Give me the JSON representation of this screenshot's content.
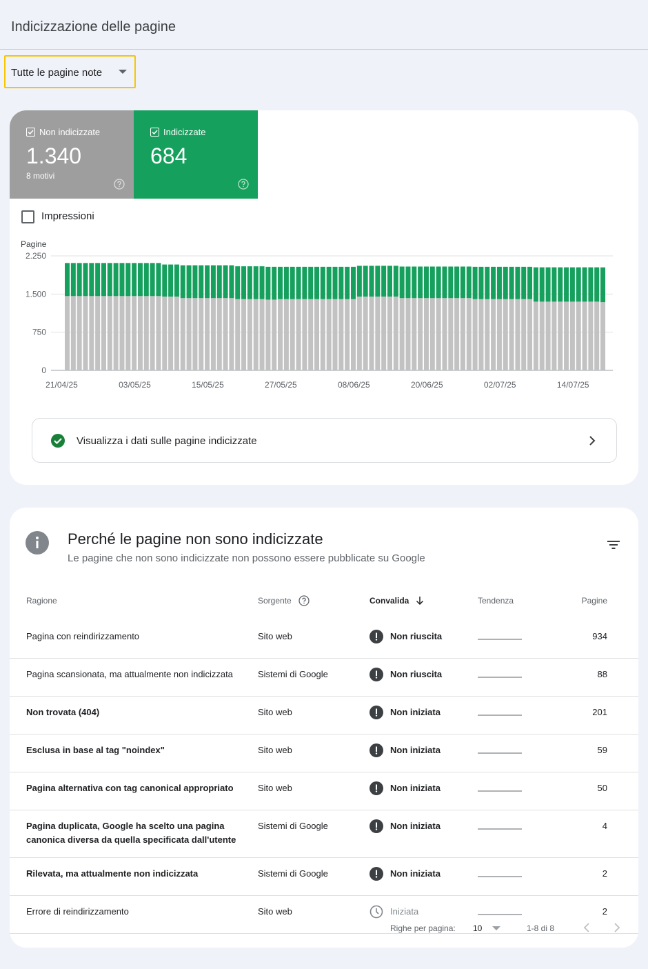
{
  "header": {
    "title": "Indicizzazione delle pagine"
  },
  "filter": {
    "label": "Tutte le pagine note"
  },
  "summary": [
    {
      "value": "1.340",
      "note": "8 motivi"
    },
    {
      "value": "684"
    }
  ],
  "impressions_label": "Impressioni",
  "chart_data": {
    "type": "bar",
    "stacked": true,
    "ylabel": "Pagine",
    "categories": [
      "21/04/25",
      null,
      null,
      null,
      null,
      null,
      null,
      null,
      null,
      null,
      null,
      null,
      "03/05/25",
      null,
      null,
      null,
      null,
      null,
      null,
      null,
      null,
      null,
      null,
      null,
      "15/05/25",
      null,
      null,
      null,
      null,
      null,
      null,
      null,
      null,
      null,
      null,
      null,
      "27/05/25",
      null,
      null,
      null,
      null,
      null,
      null,
      null,
      null,
      null,
      null,
      null,
      "08/06/25",
      null,
      null,
      null,
      null,
      null,
      null,
      null,
      null,
      null,
      null,
      null,
      "20/06/25",
      null,
      null,
      null,
      null,
      null,
      null,
      null,
      null,
      null,
      null,
      null,
      "02/07/25",
      null,
      null,
      null,
      null,
      null,
      null,
      null,
      null,
      null,
      null,
      null,
      "14/07/25",
      null,
      null,
      null,
      null
    ],
    "series": [
      {
        "name": "Non indicizzate",
        "color": "#c2c2c2",
        "values": [
          1460,
          1460,
          1460,
          1460,
          1460,
          1460,
          1460,
          1460,
          1460,
          1460,
          1460,
          1460,
          1460,
          1460,
          1460,
          1460,
          1450,
          1450,
          1450,
          1420,
          1420,
          1420,
          1420,
          1420,
          1420,
          1420,
          1420,
          1420,
          1400,
          1400,
          1400,
          1400,
          1400,
          1390,
          1390,
          1400,
          1400,
          1400,
          1400,
          1400,
          1400,
          1400,
          1400,
          1400,
          1400,
          1400,
          1400,
          1400,
          1450,
          1450,
          1450,
          1450,
          1450,
          1450,
          1450,
          1420,
          1420,
          1420,
          1420,
          1420,
          1420,
          1420,
          1420,
          1420,
          1420,
          1420,
          1420,
          1400,
          1400,
          1400,
          1400,
          1400,
          1400,
          1400,
          1400,
          1400,
          1400,
          1350,
          1350,
          1350,
          1350,
          1350,
          1350,
          1350,
          1350,
          1350,
          1350,
          1350,
          1340
        ]
      },
      {
        "name": "Indicizzate",
        "color": "#16a05d",
        "values": [
          650,
          650,
          650,
          650,
          650,
          650,
          650,
          650,
          650,
          650,
          650,
          650,
          650,
          650,
          650,
          650,
          630,
          630,
          630,
          645,
          645,
          645,
          645,
          645,
          645,
          645,
          645,
          645,
          645,
          645,
          645,
          645,
          645,
          645,
          645,
          635,
          635,
          635,
          635,
          635,
          635,
          635,
          635,
          635,
          635,
          635,
          635,
          635,
          605,
          605,
          605,
          605,
          605,
          605,
          605,
          620,
          620,
          620,
          620,
          620,
          620,
          620,
          620,
          620,
          620,
          620,
          620,
          635,
          635,
          635,
          635,
          635,
          635,
          635,
          635,
          635,
          635,
          675,
          675,
          675,
          675,
          675,
          675,
          675,
          675,
          675,
          675,
          675,
          684
        ]
      }
    ],
    "ylim": [
      0,
      2250
    ],
    "yticks": [
      0,
      750,
      {
        "value": 1500,
        "label": "1.500"
      },
      {
        "value": 2250,
        "label": "2.250"
      }
    ],
    "grid": true
  },
  "link": {
    "label": "Visualizza i dati sulle pagine indicizzate"
  },
  "reasons": {
    "title": "Perché le pagine non sono indicizzate",
    "subtitle": "Le pagine che non sono indicizzate non possono essere pubblicate su Google",
    "columns": [
      "Ragione",
      "Sorgente",
      "Convalida",
      "Tendenza",
      "Pagine"
    ],
    "rows": [
      {
        "reason": "Pagina con reindirizzamento",
        "source": "Sito web",
        "validation": "Non riuscita",
        "pages": 934,
        "bold": false,
        "icon": "alert"
      },
      {
        "reason": "Pagina scansionata, ma attualmente non indicizzata",
        "source": "Sistemi di Google",
        "validation": "Non riuscita",
        "pages": 88,
        "bold": false,
        "icon": "alert"
      },
      {
        "reason": "Non trovata (404)",
        "source": "Sito web",
        "validation": "Non iniziata",
        "pages": 201,
        "bold": true,
        "icon": "alert"
      },
      {
        "reason": "Esclusa in base al tag \"noindex\"",
        "source": "Sito web",
        "validation": "Non iniziata",
        "pages": 59,
        "bold": true,
        "icon": "alert"
      },
      {
        "reason": "Pagina alternativa con tag canonical appropriato",
        "source": "Sito web",
        "validation": "Non iniziata",
        "pages": 50,
        "bold": true,
        "icon": "alert"
      },
      {
        "reason": "Pagina duplicata, Google ha scelto una pagina canonica diversa da quella specificata dall'utente",
        "source": "Sistemi di Google",
        "validation": "Non iniziata",
        "pages": 4,
        "bold": true,
        "icon": "alert"
      },
      {
        "reason": "Rilevata, ma attualmente non indicizzata",
        "source": "Sistemi di Google",
        "validation": "Non iniziata",
        "pages": 2,
        "bold": true,
        "icon": "alert"
      },
      {
        "reason": "Errore di reindirizzamento",
        "source": "Sito web",
        "validation": "Iniziata",
        "pages": 2,
        "bold": false,
        "icon": "clock"
      }
    ]
  },
  "pagination": {
    "rows_label": "Righe per pagina:",
    "rows_per_page": 10,
    "range": "1-8 di 8"
  }
}
